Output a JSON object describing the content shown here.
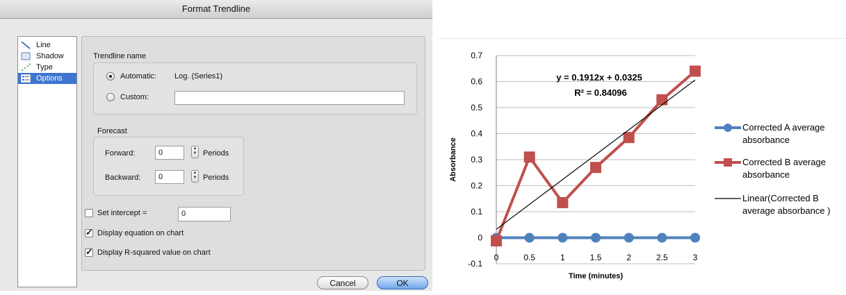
{
  "dialog": {
    "title": "Format Trendline",
    "sidebar": [
      {
        "label": "Line",
        "icon": "line-icon"
      },
      {
        "label": "Shadow",
        "icon": "shadow-icon"
      },
      {
        "label": "Type",
        "icon": "type-icon"
      },
      {
        "label": "Options",
        "icon": "options-icon",
        "selected": true
      }
    ],
    "trendline_name": {
      "group_label": "Trendline name",
      "automatic_label": "Automatic:",
      "automatic_value": "Log. (Series1)",
      "automatic_selected": true,
      "custom_label": "Custom:",
      "custom_value": ""
    },
    "forecast": {
      "group_label": "Forecast",
      "forward_label": "Forward:",
      "forward_value": "0",
      "backward_label": "Backward:",
      "backward_value": "0",
      "periods_label": "Periods"
    },
    "set_intercept": {
      "label": "Set intercept =",
      "checked": false,
      "value": "0"
    },
    "display_equation": {
      "label": "Display equation on chart",
      "checked": true
    },
    "display_r2": {
      "label": "Display R-squared value on chart",
      "checked": true
    },
    "buttons": {
      "cancel": "Cancel",
      "ok": "OK"
    }
  },
  "chart_data": {
    "type": "line",
    "title": "",
    "xlabel": "Time (minutes)",
    "ylabel": "Absorbance",
    "x_ticks": [
      "0",
      "0.5",
      "1",
      "1.5",
      "2",
      "2.5",
      "3"
    ],
    "y_ticks": [
      "-0.1",
      "0",
      "0.1",
      "0.2",
      "0.3",
      "0.4",
      "0.5",
      "0.6",
      "0.7"
    ],
    "ylim": [
      -0.1,
      0.7
    ],
    "xlim": [
      0,
      3
    ],
    "grid": "horizontal",
    "legend_position": "right",
    "x": [
      0,
      0.5,
      1,
      1.5,
      2,
      2.5,
      3
    ],
    "series": [
      {
        "name": "Corrected A average absorbance",
        "values": [
          0,
          0,
          0,
          0,
          0,
          0,
          0
        ],
        "color": "#4f81bd",
        "marker": "circle"
      },
      {
        "name": "Corrected B average absorbance",
        "values": [
          -0.012,
          0.31,
          0.135,
          0.27,
          0.385,
          0.53,
          0.64
        ],
        "color": "#c0504d",
        "marker": "square"
      }
    ],
    "trendline": {
      "name": "Linear(Corrected B average absorbance )",
      "slope": 0.1912,
      "intercept": 0.0325,
      "color": "#000000"
    },
    "annotations": {
      "equation": "y = 0.1912x + 0.0325",
      "r2": "R² = 0.84096"
    },
    "legend": [
      {
        "label": "Corrected A average absorbance",
        "lines": [
          "Corrected A average",
          "absorbance"
        ],
        "color": "#4f81bd",
        "marker": "circle"
      },
      {
        "label": "Corrected B average absorbance",
        "lines": [
          "Corrected B average",
          "absorbance"
        ],
        "color": "#c0504d",
        "marker": "square"
      },
      {
        "label": "Linear(Corrected B average absorbance )",
        "lines": [
          "Linear(Corrected B",
          "average absorbance )"
        ],
        "color": "#000000",
        "marker": "none"
      }
    ]
  }
}
